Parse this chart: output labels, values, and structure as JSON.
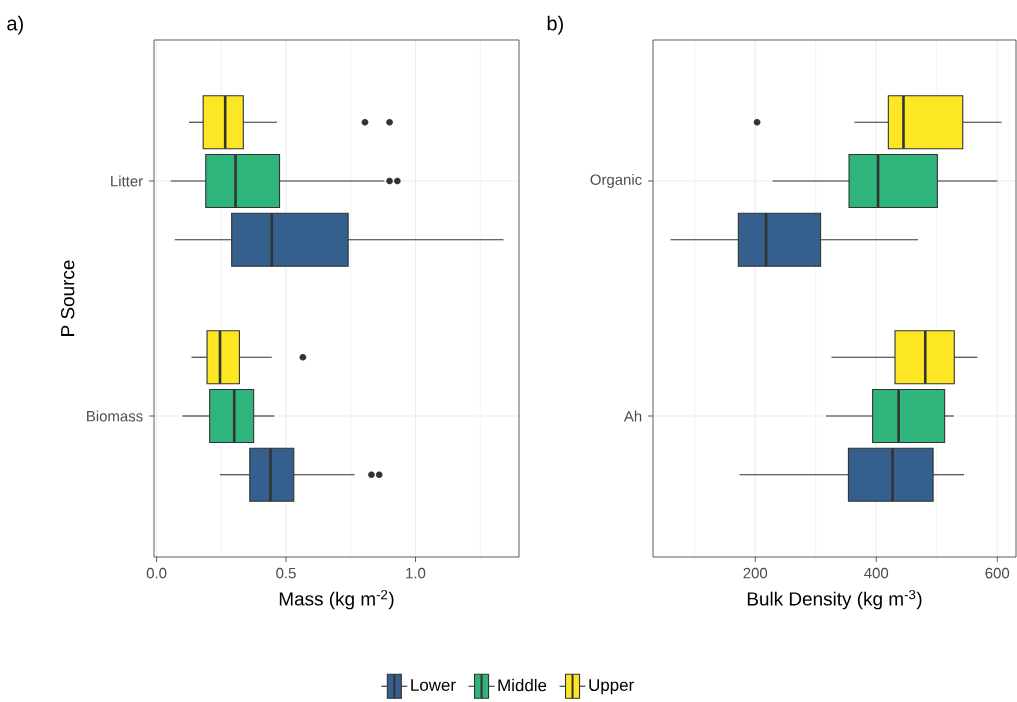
{
  "chart_data": [
    {
      "type": "box",
      "title": "a)",
      "xlabel": "Mass (kg m$^{-2}$)",
      "ylabel": "P Source",
      "orientation": "horizontal",
      "categories": [
        "Litter",
        "Biomass"
      ],
      "xlim": [
        -0.01,
        1.4
      ],
      "xticks": [
        {
          "value": 0,
          "label": "0.0"
        },
        {
          "value": 0.5,
          "label": "0.5"
        },
        {
          "value": 1,
          "label": "1.0"
        }
      ],
      "grid": true,
      "legend": "bottom",
      "series": [
        {
          "name": "Lower",
          "color": "#355f8d",
          "boxes": [
            {
              "low": 0.07,
              "q1": 0.29,
              "median": 0.445,
              "q3": 0.74,
              "high": 1.34
            },
            {
              "low": 0.245,
              "q1": 0.36,
              "median": 0.44,
              "q3": 0.53,
              "high": 0.765,
              "outliers": [
                0.83,
                0.86
              ]
            }
          ]
        },
        {
          "name": "Middle",
          "color": "#2fb47c",
          "boxes": [
            {
              "low": 0.055,
              "q1": 0.19,
              "median": 0.305,
              "q3": 0.475,
              "high": 0.88,
              "outliers": [
                0.9,
                0.93
              ]
            },
            {
              "low": 0.1,
              "q1": 0.205,
              "median": 0.3,
              "q3": 0.375,
              "high": 0.455
            }
          ]
        },
        {
          "name": "Upper",
          "color": "#fde725",
          "boxes": [
            {
              "low": 0.125,
              "q1": 0.18,
              "median": 0.265,
              "q3": 0.335,
              "high": 0.465,
              "outliers": [
                0.805,
                0.9
              ]
            },
            {
              "low": 0.135,
              "q1": 0.195,
              "median": 0.245,
              "q3": 0.32,
              "high": 0.445,
              "outliers": [
                0.565
              ]
            }
          ]
        }
      ]
    },
    {
      "type": "box",
      "title": "b)",
      "xlabel": "Bulk Density (kg m$^{-3}$)",
      "orientation": "horizontal",
      "categories": [
        "Organic",
        "Ah"
      ],
      "xlim": [
        31,
        631
      ],
      "xticks": [
        200,
        400,
        600
      ],
      "grid": true,
      "series": [
        {
          "color": "#355f8d",
          "boxes": [
            {
              "low": 60,
              "q1": 172,
              "median": 218,
              "q3": 308,
              "high": 469
            },
            {
              "low": 174,
              "q1": 354,
              "median": 427,
              "q3": 494,
              "high": 545
            }
          ]
        },
        {
          "color": "#2fb47c",
          "boxes": [
            {
              "low": 229,
              "q1": 355,
              "median": 403,
              "q3": 501,
              "high": 600
            },
            {
              "low": 317,
              "q1": 394,
              "median": 437,
              "q3": 513,
              "high": 528
            }
          ]
        },
        {
          "color": "#fde725",
          "boxes": [
            {
              "low": 364,
              "q1": 420,
              "median": 445,
              "q3": 543,
              "high": 607,
              "outliers": [
                203
              ]
            },
            {
              "low": 326,
              "q1": 431,
              "median": 481,
              "q3": 529,
              "high": 567
            }
          ]
        }
      ]
    }
  ]
}
